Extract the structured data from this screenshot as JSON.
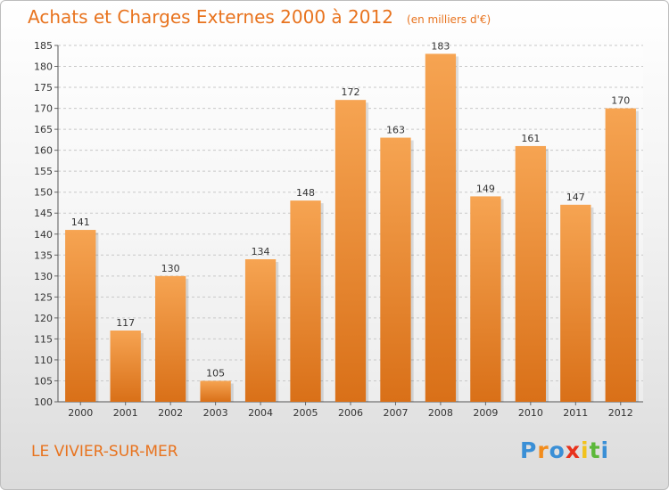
{
  "title": "Achats et Charges Externes 2000 à 2012",
  "subtitle": "(en milliers d'€)",
  "commune": "LE VIVIER-SUR-MER",
  "logo": {
    "letters": [
      "P",
      "r",
      "o",
      "x",
      "i",
      "t",
      "i"
    ],
    "colors": [
      "#3a8fd6",
      "#f28c1c",
      "#3a8fd6",
      "#e8321c",
      "#f2c21c",
      "#5cb83a",
      "#3a8fd6"
    ]
  },
  "colors": {
    "bar_top": "#f6a452",
    "bar_bottom": "#d97018",
    "accent": "#e8731e",
    "grid": "#c8c8c8"
  },
  "chart_data": {
    "type": "bar",
    "categories": [
      "2000",
      "2001",
      "2002",
      "2003",
      "2004",
      "2005",
      "2006",
      "2007",
      "2008",
      "2009",
      "2010",
      "2011",
      "2012"
    ],
    "values": [
      141,
      117,
      130,
      105,
      134,
      148,
      172,
      163,
      183,
      149,
      161,
      147,
      170
    ],
    "ylim": [
      100,
      185
    ],
    "yticks": [
      100,
      105,
      110,
      115,
      120,
      125,
      130,
      135,
      140,
      145,
      150,
      155,
      160,
      165,
      170,
      175,
      180,
      185
    ],
    "grid": true,
    "data_labels": true
  }
}
